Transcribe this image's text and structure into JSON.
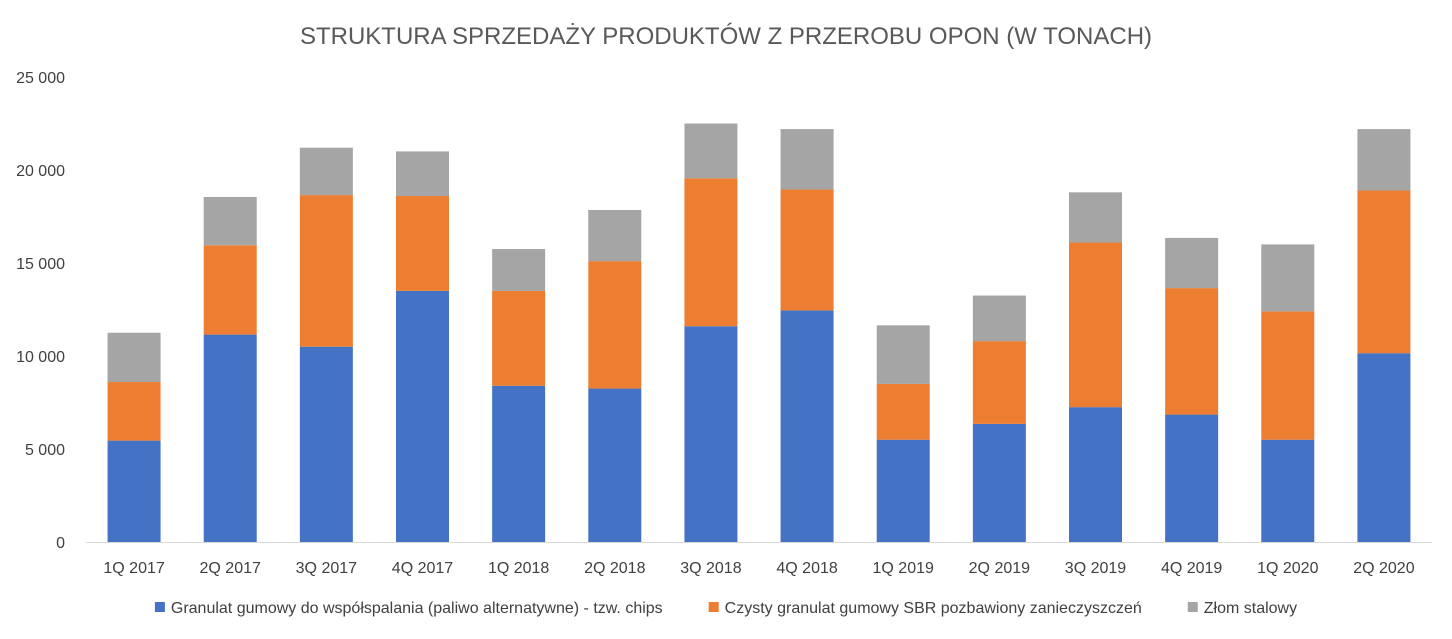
{
  "chart_data": {
    "type": "bar",
    "stacked": true,
    "title": "STRUKTURA SPRZEDAŻY PRODUKTÓW Z PRZEROBU OPON (W TONACH)",
    "xlabel": "",
    "ylabel": "",
    "ylim": [
      0,
      25000
    ],
    "yticks": [
      0,
      5000,
      10000,
      15000,
      20000,
      25000
    ],
    "ytick_labels": [
      "0",
      "5 000",
      "10 000",
      "15 000",
      "20 000",
      "25 000"
    ],
    "grid": false,
    "legend_position": "bottom",
    "categories": [
      "1Q 2017",
      "2Q 2017",
      "3Q 2017",
      "4Q 2017",
      "1Q 2018",
      "2Q 2018",
      "3Q 2018",
      "4Q 2018",
      "1Q 2019",
      "2Q 2019",
      "3Q 2019",
      "4Q 2019",
      "1Q 2020",
      "2Q 2020"
    ],
    "series": [
      {
        "name": "Granulat gumowy do współspalania (paliwo alternatywne) - tzw. chips",
        "color": "#4472C4",
        "values": [
          5450,
          11150,
          10500,
          13500,
          8400,
          8250,
          11600,
          12450,
          5500,
          6350,
          7250,
          6850,
          5500,
          10150
        ]
      },
      {
        "name": "Czysty granulat gumowy SBR pozbawiony zanieczyszczeń",
        "color": "#ED7D31",
        "values": [
          3150,
          4800,
          8150,
          5100,
          5100,
          6850,
          7950,
          6500,
          3000,
          4450,
          8850,
          6800,
          6900,
          8750
        ]
      },
      {
        "name": "Złom stalowy",
        "color": "#A5A5A5",
        "values": [
          2650,
          2600,
          2550,
          2400,
          2250,
          2750,
          2950,
          3250,
          3150,
          2450,
          2700,
          2700,
          3600,
          3300
        ]
      }
    ]
  }
}
